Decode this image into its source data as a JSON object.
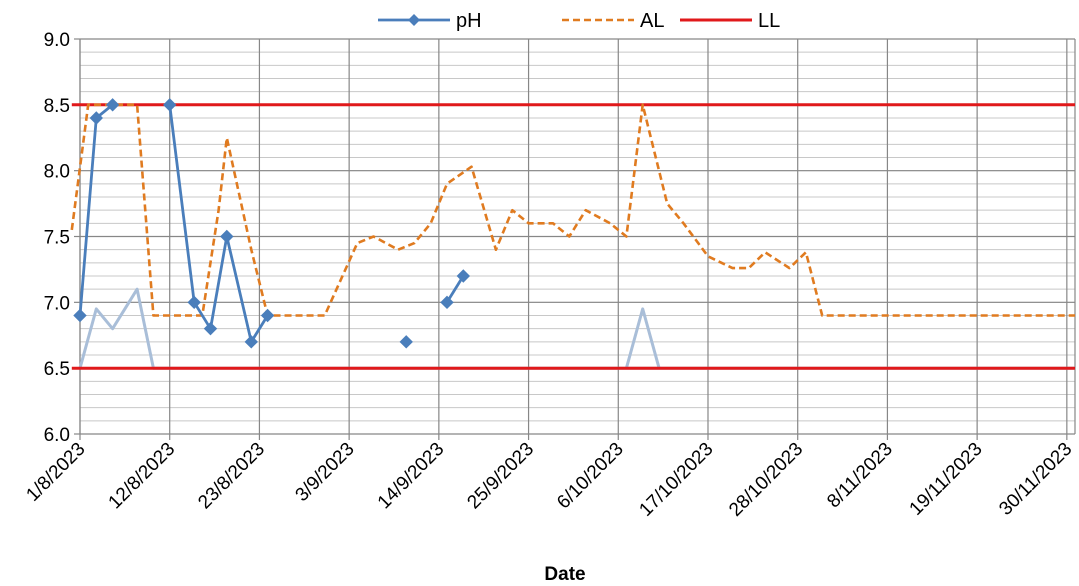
{
  "chart_data": {
    "type": "line",
    "title": "",
    "xlabel": "Date",
    "ylabel": "",
    "ylim": [
      6.0,
      9.0
    ],
    "y_ticks": [
      "6.0",
      "6.5",
      "7.0",
      "7.5",
      "8.0",
      "8.5",
      "9.0"
    ],
    "x_range": [
      "1/8/2023",
      "1/12/2023"
    ],
    "x_ticks": [
      "1/8/2023",
      "12/8/2023",
      "23/8/2023",
      "3/9/2023",
      "14/9/2023",
      "25/9/2023",
      "6/10/2023",
      "17/10/2023",
      "28/10/2023",
      "8/11/2023",
      "19/11/2023",
      "30/11/2023"
    ],
    "grid": true,
    "legend_position": "top",
    "series": [
      {
        "name": "pH",
        "color": "#4a7ebb",
        "style": "solid-diamond-markers",
        "points": [
          [
            "1/8/2023",
            6.9
          ],
          [
            "3/8/2023",
            8.4
          ],
          [
            "5/8/2023",
            8.5
          ],
          null,
          [
            "12/8/2023",
            8.5
          ],
          [
            "15/8/2023",
            7.0
          ],
          [
            "17/8/2023",
            6.8
          ],
          [
            "19/8/2023",
            7.5
          ],
          [
            "22/8/2023",
            6.7
          ],
          [
            "24/8/2023",
            6.9
          ],
          null,
          [
            "10/9/2023",
            6.7
          ],
          null,
          [
            "15/9/2023",
            7.0
          ],
          [
            "17/9/2023",
            7.2
          ]
        ]
      },
      {
        "name": "AL",
        "color": "#e07b20",
        "style": "dashed",
        "points": [
          [
            "31/7/2023",
            7.55
          ],
          [
            "2/8/2023",
            8.5
          ],
          [
            "8/8/2023",
            8.5
          ],
          [
            "10/8/2023",
            6.9
          ],
          [
            "16/8/2023",
            6.9
          ],
          [
            "18/8/2023",
            7.7
          ],
          [
            "19/8/2023",
            8.25
          ],
          [
            "22/8/2023",
            7.4
          ],
          [
            "24/8/2023",
            6.9
          ],
          [
            "31/8/2023",
            6.9
          ],
          [
            "4/9/2023",
            7.45
          ],
          [
            "6/9/2023",
            7.5
          ],
          [
            "9/9/2023",
            7.4
          ],
          [
            "11/9/2023",
            7.45
          ],
          [
            "13/9/2023",
            7.6
          ],
          [
            "15/9/2023",
            7.9
          ],
          [
            "18/9/2023",
            8.03
          ],
          [
            "21/9/2023",
            7.4
          ],
          [
            "23/9/2023",
            7.7
          ],
          [
            "25/9/2023",
            7.6
          ],
          [
            "28/9/2023",
            7.6
          ],
          [
            "30/9/2023",
            7.5
          ],
          [
            "2/10/2023",
            7.7
          ],
          [
            "5/10/2023",
            7.6
          ],
          [
            "7/10/2023",
            7.5
          ],
          [
            "9/10/2023",
            8.5
          ],
          [
            "12/10/2023",
            7.75
          ],
          [
            "14/10/2023",
            7.6
          ],
          [
            "17/10/2023",
            7.35
          ],
          [
            "20/10/2023",
            7.26
          ],
          [
            "22/10/2023",
            7.26
          ],
          [
            "24/10/2023",
            7.38
          ],
          [
            "27/10/2023",
            7.26
          ],
          [
            "29/10/2023",
            7.38
          ],
          [
            "31/10/2023",
            6.9
          ],
          [
            "1/12/2023",
            6.9
          ]
        ]
      },
      {
        "name": "LL",
        "color": "#e0191b",
        "style": "solid-thick",
        "points": [
          [
            "31/7/2023",
            6.5
          ],
          [
            "1/12/2023",
            6.5
          ]
        ]
      },
      {
        "name": "",
        "color": "#e0191b",
        "style": "solid-thick",
        "points": [
          [
            "31/7/2023",
            8.5
          ],
          [
            "1/12/2023",
            8.5
          ]
        ]
      },
      {
        "name": "",
        "color": "#a9bed8",
        "style": "light-solid",
        "points": [
          [
            "1/8/2023",
            6.5
          ],
          [
            "3/8/2023",
            6.95
          ],
          [
            "5/8/2023",
            6.8
          ],
          [
            "8/8/2023",
            7.1
          ],
          [
            "10/8/2023",
            6.5
          ],
          [
            "1/12/2023",
            6.5
          ]
        ]
      },
      {
        "name": "",
        "color": "#a9bed8",
        "style": "light-solid",
        "points": [
          [
            "7/10/2023",
            6.5
          ],
          [
            "9/10/2023",
            6.95
          ],
          [
            "11/10/2023",
            6.5
          ]
        ]
      }
    ]
  }
}
